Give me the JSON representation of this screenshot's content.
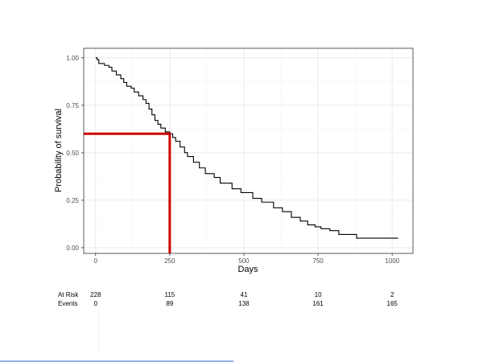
{
  "chart_data": {
    "type": "line",
    "title": "",
    "xlabel": "Days",
    "ylabel": "Probability of survival",
    "xlim": [
      -40,
      1070
    ],
    "ylim": [
      -0.03,
      1.05
    ],
    "x_ticks": [
      0,
      250,
      500,
      750,
      1000
    ],
    "y_ticks": [
      0.0,
      0.25,
      0.5,
      0.75,
      1.0
    ],
    "y_tick_labels": [
      "0.00",
      "0.25",
      "0.50",
      "0.75",
      "1.00"
    ],
    "grid": true,
    "colors": {
      "curve": "#000000",
      "marker": "#cc0000",
      "grid_major": "#ebebeb",
      "grid_minor": "#f5f5f5",
      "panel_border": "#333333"
    },
    "series": [
      {
        "step": true,
        "x": [
          0,
          5,
          11,
          30,
          45,
          55,
          70,
          85,
          95,
          105,
          120,
          130,
          145,
          160,
          170,
          180,
          190,
          200,
          210,
          220,
          235,
          250,
          260,
          270,
          285,
          300,
          310,
          330,
          350,
          370,
          400,
          420,
          460,
          490,
          530,
          560,
          600,
          630,
          660,
          690,
          715,
          740,
          760,
          790,
          820,
          880,
          1020
        ],
        "y": [
          1.0,
          0.99,
          0.97,
          0.96,
          0.95,
          0.93,
          0.91,
          0.89,
          0.87,
          0.85,
          0.84,
          0.82,
          0.8,
          0.78,
          0.76,
          0.73,
          0.7,
          0.67,
          0.65,
          0.63,
          0.61,
          0.6,
          0.58,
          0.56,
          0.53,
          0.5,
          0.48,
          0.45,
          0.42,
          0.39,
          0.37,
          0.34,
          0.31,
          0.29,
          0.26,
          0.24,
          0.21,
          0.19,
          0.16,
          0.14,
          0.12,
          0.11,
          0.1,
          0.09,
          0.07,
          0.05,
          0.05
        ]
      }
    ],
    "annotations": [
      {
        "type": "reference-lines",
        "x": 250,
        "y": 0.6
      }
    ],
    "risk_table": {
      "rows": [
        {
          "label": "At Risk",
          "values": [
            "228",
            "115",
            "41",
            "10",
            "2"
          ]
        },
        {
          "label": "Events",
          "values": [
            "0",
            "89",
            "138",
            "161",
            "165"
          ]
        }
      ],
      "x": [
        0,
        250,
        500,
        750,
        1000
      ]
    }
  }
}
